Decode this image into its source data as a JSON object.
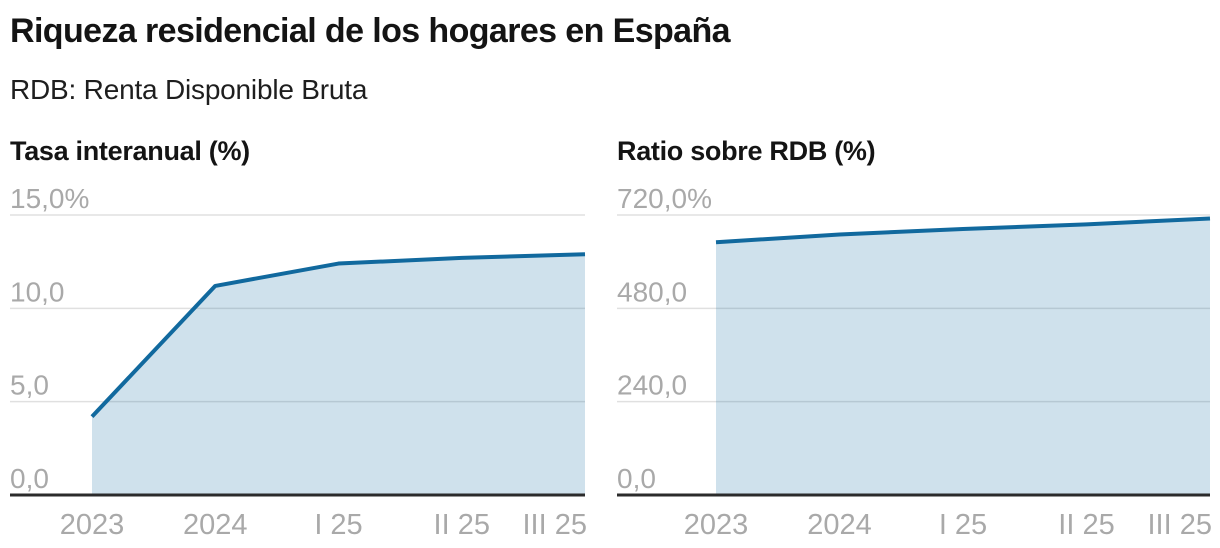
{
  "header": {
    "title": "Riqueza residencial de los hogares en España",
    "subtitle": "RDB: Renta Disponible Bruta"
  },
  "colors": {
    "line": "#11699e",
    "area_fill": "#11699e",
    "area_fill_opacity": 0.2,
    "gridline": "#e0e0e0",
    "axis_line": "#2b2b2b",
    "tick_label": "#a9a9a9",
    "heading_text": "#141414"
  },
  "chart_data": [
    {
      "type": "area",
      "title": "Tasa interanual (%)",
      "categories": [
        "2023",
        "2024",
        "I 25",
        "II 25",
        "III 25"
      ],
      "values": [
        4.2,
        11.2,
        12.4,
        12.7,
        12.9
      ],
      "ylim": [
        0,
        15
      ],
      "y_ticks": [
        {
          "value": 15,
          "label": "15,0%"
        },
        {
          "value": 10,
          "label": "10,0"
        },
        {
          "value": 5,
          "label": "5,0"
        },
        {
          "value": 0,
          "label": "0,0"
        }
      ],
      "grid": true,
      "legend": false
    },
    {
      "type": "area",
      "title": "Ratio sobre RDB (%)",
      "categories": [
        "2023",
        "2024",
        "I 25",
        "II 25",
        "III 25"
      ],
      "values": [
        650,
        670,
        684,
        696,
        711
      ],
      "ylim": [
        0,
        720
      ],
      "y_ticks": [
        {
          "value": 720,
          "label": "720,0%"
        },
        {
          "value": 480,
          "label": "480,0"
        },
        {
          "value": 240,
          "label": "240,0"
        },
        {
          "value": 0,
          "label": "0,0"
        }
      ],
      "grid": true,
      "legend": false
    }
  ]
}
